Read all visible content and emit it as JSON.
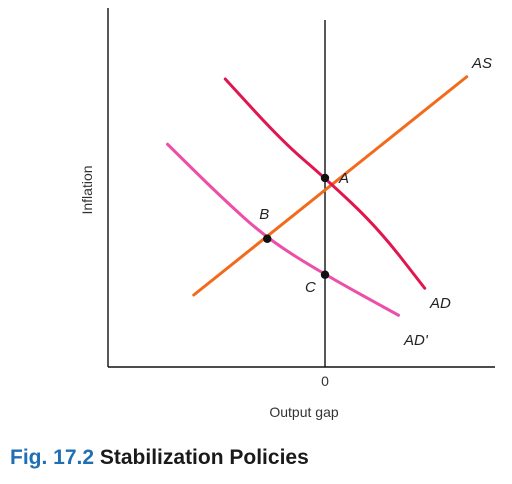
{
  "chart_data": {
    "type": "line",
    "xlabel": "Output gap",
    "ylabel": "Inflation",
    "x_ticks": [
      "0"
    ],
    "grid": false,
    "colors": {
      "AS": "#f26a1b",
      "AD": "#e0164f",
      "AD_prime": "#ec4fa9",
      "axis": "#111111"
    },
    "series": [
      {
        "name": "AS",
        "points": [
          [
            -1.25,
            1.0
          ],
          [
            1.35,
            5.85
          ]
        ]
      },
      {
        "name": "AD",
        "points": [
          [
            -0.95,
            5.8
          ],
          [
            -0.4,
            4.4
          ],
          [
            0,
            3.6
          ],
          [
            0.5,
            2.5
          ],
          [
            0.95,
            1.15
          ]
        ]
      },
      {
        "name": "AD'",
        "points": [
          [
            -1.5,
            4.35
          ],
          [
            -1.0,
            3.2
          ],
          [
            -0.55,
            2.25
          ],
          [
            0,
            1.45
          ],
          [
            0.7,
            0.55
          ]
        ]
      }
    ],
    "annotations": [
      {
        "label": "A",
        "x": 0,
        "y": 3.6
      },
      {
        "label": "B",
        "x": -0.55,
        "y": 2.25
      },
      {
        "label": "C",
        "x": 0,
        "y": 1.45
      }
    ]
  },
  "caption": {
    "number": "Fig. 17.2",
    "title": "Stabilization Policies"
  }
}
